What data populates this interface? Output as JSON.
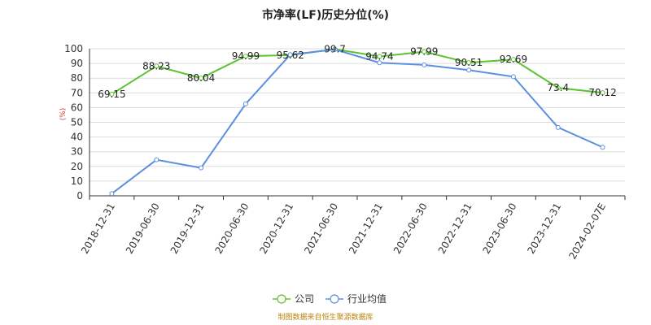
{
  "chart_data": {
    "type": "line",
    "title": "市净率(LF)历史分位(%)",
    "ylabel": "(%)",
    "ylim": [
      0,
      100
    ],
    "yticks": [
      0,
      10,
      20,
      30,
      40,
      50,
      60,
      70,
      80,
      90,
      100
    ],
    "categories": [
      "2018-12-31",
      "2019-06-30",
      "2019-12-31",
      "2020-06-30",
      "2020-12-31",
      "2021-06-30",
      "2021-12-31",
      "2022-06-30",
      "2022-12-31",
      "2023-06-30",
      "2023-12-31",
      "2024-02-07E"
    ],
    "series": [
      {
        "name": "公司",
        "color": "#5bc230",
        "values": [
          69.15,
          88.23,
          80.04,
          94.99,
          95.62,
          99.7,
          94.74,
          97.99,
          90.51,
          92.69,
          73.4,
          70.12
        ],
        "labels": [
          "69.15",
          "88.23",
          "80.04",
          "94.99",
          "95.62",
          "99.7",
          "94.74",
          "97.99",
          "90.51",
          "92.69",
          "73.4",
          "70.12"
        ]
      },
      {
        "name": "行业均值",
        "color": "#5b8fe0",
        "values": [
          1.5,
          24.5,
          19,
          62.5,
          96,
          99.5,
          90.5,
          89,
          85.5,
          81,
          46.5,
          33
        ]
      }
    ],
    "legend_position": "bottom",
    "grid": true
  },
  "source_text": "制图数据来自恒生聚源数据库"
}
